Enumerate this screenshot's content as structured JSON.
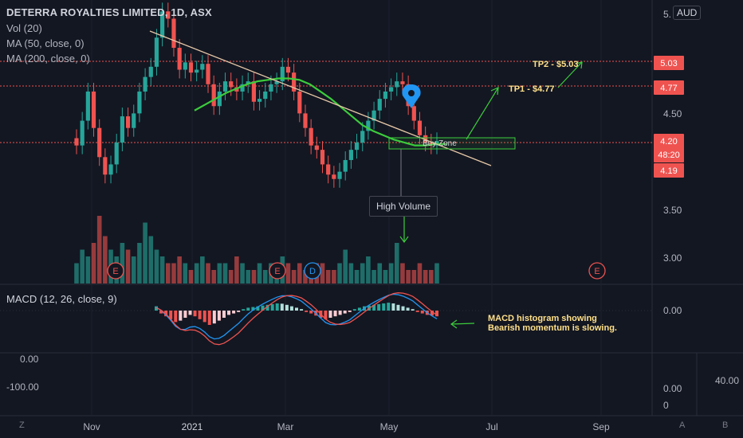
{
  "header": {
    "title": "DETERRA ROYALTIES LIMITED, 1D, ASX",
    "currency": "AUD",
    "indicators": [
      "Vol (20)",
      "MA (50, close, 0)",
      "MA (200, close, 0)"
    ],
    "macd_label": "MACD (12, 26, close, 9)"
  },
  "annotations": {
    "tp2": "TP2 - $5.03",
    "tp1": "TP1 - $4.77",
    "buy_zone": "Buy Zone",
    "high_volume": "High Volume",
    "macd_note": "MACD histogram showing Bearish momentum is slowing."
  },
  "bottom_bar": {
    "left_icon": "Z",
    "right_icons": [
      "A",
      "B"
    ]
  },
  "colors": {
    "up": "#26a69a",
    "down": "#ef5350",
    "ma": "#3ccc3c",
    "trendline": "#e8c9a8",
    "annotation": "#ffe08a",
    "background": "#131722"
  },
  "chart_data": {
    "type": "candlestick",
    "x_ticks": [
      "Nov",
      "2021",
      "Mar",
      "May",
      "Jul",
      "Sep"
    ],
    "price_ticks": [
      "5.",
      "4.50",
      "3.50",
      "3.00"
    ],
    "price_badges": [
      {
        "label": "5.03",
        "color": "#ef5350"
      },
      {
        "label": "4.77",
        "color": "#ef5350"
      },
      {
        "label": "4.20",
        "sub": "48:20",
        "color": "#ef5350"
      },
      {
        "label": "4.19",
        "color": "#ef5350"
      }
    ],
    "macd_ticks": [
      "0.00"
    ],
    "lower_left_ticks": [
      "0.00",
      "-100.00"
    ],
    "lower_right_ticks": [
      "40.00",
      "0.00",
      "0"
    ],
    "earnings_markers": [
      "E",
      "E",
      "D",
      "E"
    ],
    "close_series": [
      4.18,
      4.35,
      4.55,
      4.3,
      4.1,
      3.98,
      4.05,
      4.2,
      4.38,
      4.3,
      4.4,
      4.55,
      4.65,
      4.72,
      4.92,
      5.1,
      5.05,
      4.85,
      4.7,
      4.75,
      4.68,
      4.7,
      4.74,
      4.6,
      4.45,
      4.55,
      4.62,
      4.58,
      4.55,
      4.6,
      4.62,
      4.48,
      4.5,
      4.55,
      4.6,
      4.62,
      4.72,
      4.68,
      4.55,
      4.4,
      4.3,
      4.18,
      4.15,
      4.05,
      3.98,
      3.95,
      4.0,
      4.08,
      4.15,
      4.2,
      4.28,
      4.35,
      4.42,
      4.5,
      4.55,
      4.58,
      4.62,
      4.6,
      4.45,
      4.35,
      4.25,
      4.2,
      4.18,
      4.21
    ],
    "ma_series": [
      4.42,
      4.46,
      4.5,
      4.54,
      4.57,
      4.6,
      4.62,
      4.63,
      4.64,
      4.64,
      4.63,
      4.6,
      4.55,
      4.5,
      4.44,
      4.38,
      4.32,
      4.28,
      4.25,
      4.22,
      4.2,
      4.18,
      4.18,
      4.19,
      4.19
    ],
    "volume_relative": [
      3,
      5,
      4,
      6,
      10,
      7,
      5,
      4,
      6,
      5,
      4,
      6,
      9,
      7,
      5,
      4,
      3,
      3,
      4,
      3,
      2,
      3,
      4,
      3,
      2,
      3,
      3,
      2,
      4,
      3,
      2,
      2,
      3,
      2,
      3,
      2,
      4,
      3,
      2,
      3,
      2,
      2,
      3,
      3,
      2,
      2,
      3,
      5,
      3,
      2,
      3,
      4,
      2,
      3,
      2,
      3,
      6,
      3,
      2,
      2,
      3,
      2,
      2,
      3
    ],
    "macd_hist_relative": [
      0.3,
      -0.2,
      -0.4,
      -0.6,
      -0.8,
      -0.7,
      -0.5,
      -0.3,
      -0.4,
      -0.6,
      -0.8,
      -1,
      -0.9,
      -0.7,
      -0.5,
      -0.3,
      -0.2,
      -0.1,
      0.1,
      0.2,
      0.25,
      0.3,
      0.35,
      0.4,
      0.45,
      0.5,
      0.48,
      0.4,
      0.3,
      0.2,
      0.1,
      -0.1,
      -0.2,
      -0.35,
      -0.5,
      -0.6,
      -0.5,
      -0.4,
      -0.3,
      -0.2,
      -0.1,
      0.1,
      0.2,
      0.3,
      0.35,
      0.4,
      0.45,
      0.5,
      0.55,
      0.5,
      0.4,
      0.3,
      0.2,
      0.1,
      -0.1,
      -0.2,
      -0.3,
      -0.35,
      -0.4
    ]
  }
}
